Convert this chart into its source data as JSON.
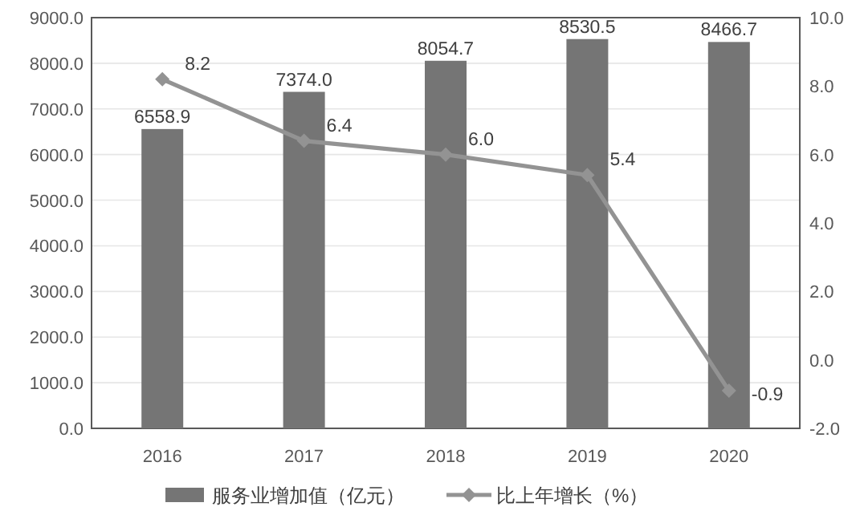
{
  "chart_data": {
    "type": "bar",
    "categories": [
      "2016",
      "2017",
      "2018",
      "2019",
      "2020"
    ],
    "series": [
      {
        "name": "服务业增加值（亿元）",
        "color": "#757575",
        "values": [
          6558.9,
          7374.0,
          8054.7,
          8530.5,
          8466.7
        ],
        "value_labels": [
          "6558.9",
          "7374.0",
          "8054.7",
          "8530.5",
          "8466.7"
        ]
      },
      {
        "name": "比上年增长（%）",
        "type": "line",
        "axis": "y2",
        "color": "#939393",
        "values": [
          8.2,
          6.4,
          6.0,
          5.4,
          -0.9
        ],
        "value_labels": [
          "8.2",
          "6.4",
          "6.0",
          "5.4",
          "-0.9"
        ]
      }
    ],
    "ylim": [
      0,
      9000
    ],
    "yticks": [
      {
        "value": 0,
        "label": "0.0"
      },
      {
        "value": 1000,
        "label": "1000.0"
      },
      {
        "value": 2000,
        "label": "2000.0"
      },
      {
        "value": 3000,
        "label": "3000.0"
      },
      {
        "value": 4000,
        "label": "4000.0"
      },
      {
        "value": 5000,
        "label": "5000.0"
      },
      {
        "value": 6000,
        "label": "6000.0"
      },
      {
        "value": 7000,
        "label": "7000.0"
      },
      {
        "value": 8000,
        "label": "8000.0"
      },
      {
        "value": 9000,
        "label": "9000.0"
      }
    ],
    "y2lim": [
      -2,
      10
    ],
    "y2ticks": [
      {
        "value": -2,
        "label": "-2.0"
      },
      {
        "value": 0,
        "label": "0.0"
      },
      {
        "value": 2,
        "label": "2.0"
      },
      {
        "value": 4,
        "label": "4.0"
      },
      {
        "value": 6,
        "label": "6.0"
      },
      {
        "value": 8,
        "label": "8.0"
      },
      {
        "value": 10,
        "label": "10.0"
      }
    ],
    "grid": "y",
    "legend": "bottom",
    "marker": "diamond",
    "line_style": "solid"
  }
}
